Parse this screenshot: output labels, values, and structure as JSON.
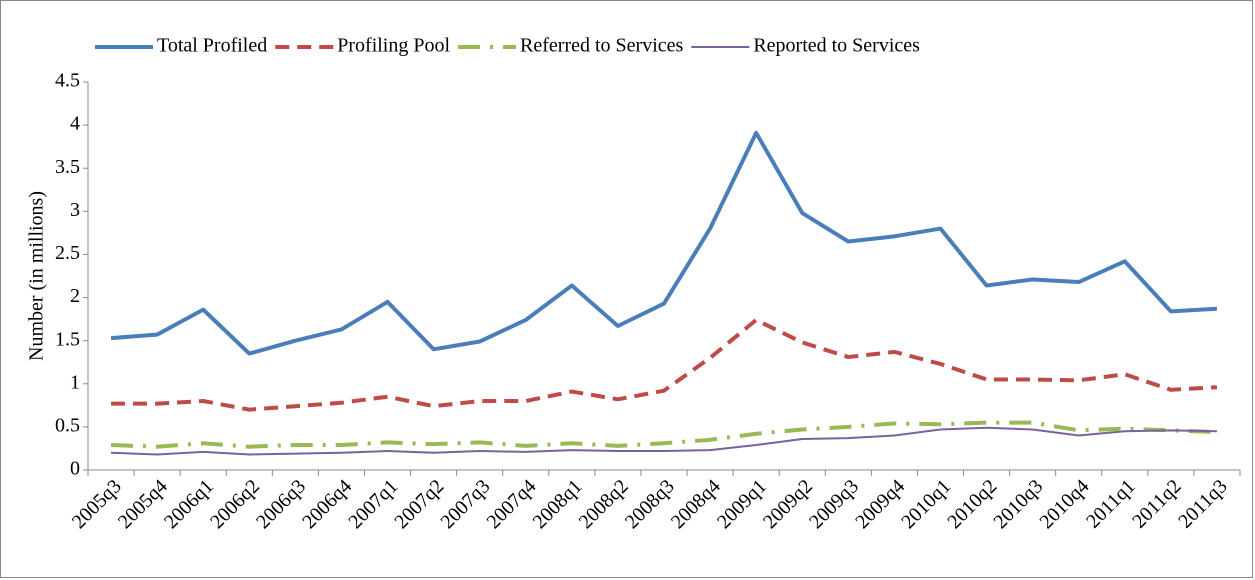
{
  "chart_data": {
    "type": "line",
    "y_label": "Number (in millions)",
    "categories": [
      "2005q3",
      "2005q4",
      "2006q1",
      "2006q2",
      "2006q3",
      "2006q4",
      "2007q1",
      "2007q2",
      "2007q3",
      "2007q4",
      "2008q1",
      "2008q2",
      "2008q3",
      "2008q4",
      "2009q1",
      "2009q2",
      "2009q3",
      "2009q4",
      "2010q1",
      "2010q2",
      "2010q3",
      "2010q4",
      "2011q1",
      "2011q2",
      "2011q3"
    ],
    "series": [
      {
        "name": "Total Profiled",
        "color": "#4a7ebb",
        "dash": "solid",
        "width": 4,
        "values": [
          1.53,
          1.57,
          1.86,
          1.35,
          1.5,
          1.63,
          1.95,
          1.4,
          1.49,
          1.74,
          2.14,
          1.67,
          1.93,
          2.8,
          3.91,
          2.98,
          2.65,
          2.71,
          2.8,
          2.14,
          2.21,
          2.18,
          2.42,
          1.84,
          1.87
        ]
      },
      {
        "name": "Profiling Pool",
        "color": "#be4b48",
        "dash": "dashed",
        "width": 4,
        "values": [
          0.77,
          0.77,
          0.8,
          0.7,
          0.74,
          0.78,
          0.85,
          0.74,
          0.8,
          0.8,
          0.91,
          0.82,
          0.92,
          1.3,
          1.74,
          1.48,
          1.31,
          1.37,
          1.23,
          1.05,
          1.05,
          1.04,
          1.11,
          0.93,
          0.96
        ]
      },
      {
        "name": "Referred to Services",
        "color": "#98b954",
        "dash": "dash-dot",
        "width": 4,
        "values": [
          0.29,
          0.27,
          0.31,
          0.27,
          0.29,
          0.29,
          0.32,
          0.3,
          0.32,
          0.28,
          0.31,
          0.28,
          0.31,
          0.35,
          0.42,
          0.47,
          0.5,
          0.54,
          0.53,
          0.55,
          0.55,
          0.46,
          0.48,
          0.46,
          0.44
        ]
      },
      {
        "name": "Reported to Services",
        "color": "#7d60a0",
        "dash": "solid",
        "width": 2,
        "values": [
          0.2,
          0.18,
          0.21,
          0.18,
          0.19,
          0.2,
          0.22,
          0.2,
          0.22,
          0.21,
          0.23,
          0.22,
          0.22,
          0.23,
          0.29,
          0.36,
          0.37,
          0.4,
          0.47,
          0.49,
          0.47,
          0.4,
          0.45,
          0.46,
          0.45
        ]
      }
    ],
    "ylim": [
      0,
      4.5
    ],
    "yticks": [
      0,
      0.5,
      1,
      1.5,
      2,
      2.5,
      3,
      3.5,
      4,
      4.5
    ],
    "grid": false,
    "legend": "top"
  }
}
